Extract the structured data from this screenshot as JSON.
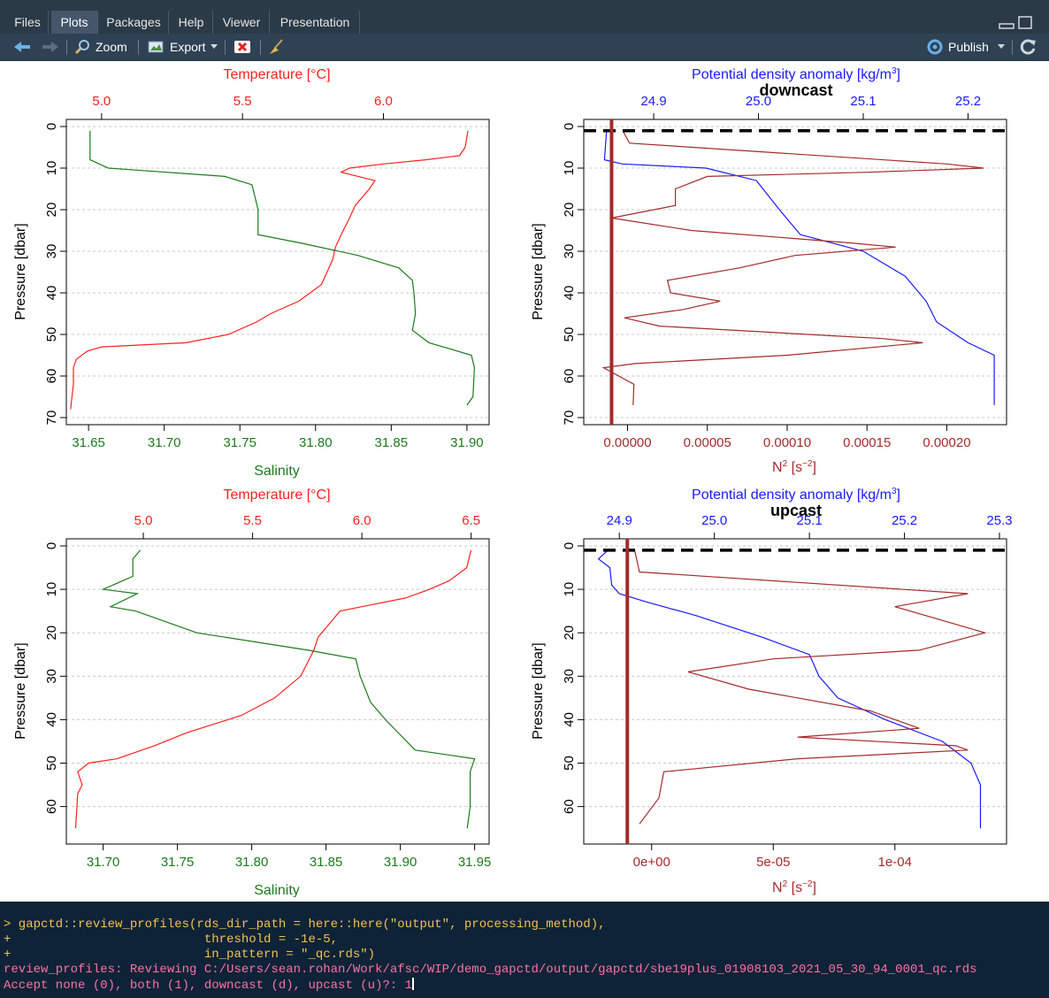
{
  "tabs": [
    {
      "label": "Files",
      "active": false
    },
    {
      "label": "Plots",
      "active": true
    },
    {
      "label": "Packages",
      "active": false
    },
    {
      "label": "Help",
      "active": false
    },
    {
      "label": "Viewer",
      "active": false
    },
    {
      "label": "Presentation",
      "active": false
    }
  ],
  "toolbar": {
    "back_icon": "arrow-left-icon",
    "forward_icon": "arrow-right-icon",
    "zoom_label": "Zoom",
    "export_label": "Export",
    "remove_icon": "remove-plot-icon",
    "clear_icon": "broom-icon",
    "publish_label": "Publish",
    "refresh_icon": "refresh-icon"
  },
  "colors": {
    "temperature": "#ff2020",
    "salinity": "#1c7a1c",
    "density": "#1a1aff",
    "n2": "#a52a2a",
    "dashed": "#000000"
  },
  "plots": {
    "top_left": {
      "top_axis_label": "Temperature [°C]",
      "top_ticks": [
        "5.0",
        "5.5",
        "6.0"
      ],
      "bottom_axis_label": "Salinity",
      "bottom_ticks": [
        "31.65",
        "31.70",
        "31.75",
        "31.80",
        "31.85",
        "31.90"
      ],
      "y_label": "Pressure [dbar]",
      "y_ticks": [
        "0",
        "10",
        "20",
        "30",
        "40",
        "50",
        "60",
        "70"
      ]
    },
    "top_right": {
      "title": "downcast",
      "top_axis_label": "Potential density anomaly [kg/m",
      "top_ticks": [
        "24.9",
        "25.0",
        "25.1",
        "25.2"
      ],
      "bottom_ticks": [
        "0.00000",
        "0.00005",
        "0.00010",
        "0.00015",
        "0.00020"
      ],
      "y_label": "Pressure [dbar]",
      "y_ticks": [
        "0",
        "10",
        "20",
        "30",
        "40",
        "50",
        "60",
        "70"
      ]
    },
    "bottom_left": {
      "top_axis_label": "Temperature [°C]",
      "top_ticks": [
        "5.0",
        "5.5",
        "6.0",
        "6.5"
      ],
      "bottom_axis_label": "Salinity",
      "bottom_ticks": [
        "31.70",
        "31.75",
        "31.80",
        "31.85",
        "31.90",
        "31.95"
      ],
      "y_label": "Pressure [dbar]",
      "y_ticks": [
        "0",
        "10",
        "20",
        "30",
        "40",
        "50",
        "60"
      ]
    },
    "bottom_right": {
      "title": "upcast",
      "top_axis_label": "Potential density anomaly [kg/m",
      "top_ticks": [
        "24.9",
        "25.0",
        "25.1",
        "25.2",
        "25.3"
      ],
      "bottom_ticks": [
        "0e+00",
        "5e-05",
        "1e-04"
      ],
      "y_label": "Pressure [dbar]",
      "y_ticks": [
        "0",
        "10",
        "20",
        "30",
        "40",
        "50",
        "60"
      ]
    }
  },
  "n2_label": "N",
  "n2_units": "[s",
  "console": {
    "lines": [
      "> gapctd::review_profiles(rds_dir_path = here::here(\"output\", processing_method),",
      "+                          threshold = -1e-5,",
      "+                          in_pattern = \"_qc.rds\")",
      "review_profiles: Reviewing C:/Users/sean.rohan/Work/afsc/WIP/demo_gapctd/output/gapctd/sbe19plus_01908103_2021_05_30_94_0001_qc.rds",
      "Accept none (0), both (1), downcast (d), upcast (u)?: 1"
    ]
  },
  "chart_data": [
    {
      "type": "line",
      "title": "",
      "y_axis": {
        "label": "Pressure [dbar]",
        "range": [
          70,
          0
        ],
        "reversed": true
      },
      "series": [
        {
          "name": "Temperature [°C]",
          "axis": "top",
          "range": [
            4.9,
            6.35
          ],
          "points": [
            [
              6.3,
              1
            ],
            [
              6.29,
              5
            ],
            [
              6.27,
              7
            ],
            [
              6.15,
              8
            ],
            [
              6.0,
              9
            ],
            [
              5.88,
              10
            ],
            [
              5.85,
              11
            ],
            [
              5.97,
              13
            ],
            [
              5.95,
              15
            ],
            [
              5.9,
              19
            ],
            [
              5.88,
              22
            ],
            [
              5.85,
              26
            ],
            [
              5.83,
              29
            ],
            [
              5.82,
              32
            ],
            [
              5.8,
              35
            ],
            [
              5.78,
              38
            ],
            [
              5.7,
              42
            ],
            [
              5.6,
              45
            ],
            [
              5.55,
              47
            ],
            [
              5.45,
              50
            ],
            [
              5.3,
              52
            ],
            [
              5.0,
              53
            ],
            [
              4.95,
              54
            ],
            [
              4.91,
              56
            ],
            [
              4.9,
              58
            ],
            [
              4.9,
              62
            ],
            [
              4.89,
              68
            ]
          ]
        },
        {
          "name": "Salinity",
          "axis": "bottom",
          "range": [
            31.64,
            31.91
          ],
          "points": [
            [
              31.651,
              1
            ],
            [
              31.651,
              8
            ],
            [
              31.663,
              10
            ],
            [
              31.74,
              12
            ],
            [
              31.758,
              14
            ],
            [
              31.762,
              20
            ],
            [
              31.762,
              26
            ],
            [
              31.79,
              28
            ],
            [
              31.828,
              31
            ],
            [
              31.855,
              34
            ],
            [
              31.864,
              37
            ],
            [
              31.865,
              40
            ],
            [
              31.866,
              45
            ],
            [
              31.864,
              49
            ],
            [
              31.875,
              52
            ],
            [
              31.903,
              55
            ],
            [
              31.905,
              58
            ],
            [
              31.904,
              65
            ],
            [
              31.9,
              67
            ]
          ]
        }
      ]
    },
    {
      "type": "line",
      "title": "downcast",
      "y_axis": {
        "label": "Pressure [dbar]",
        "range": [
          70,
          0
        ],
        "reversed": true
      },
      "series": [
        {
          "name": "Potential density anomaly",
          "axis": "top",
          "range": [
            24.84,
            25.23
          ],
          "points": [
            [
              24.855,
              1
            ],
            [
              24.853,
              8
            ],
            [
              24.87,
              9
            ],
            [
              24.95,
              10
            ],
            [
              24.998,
              13
            ],
            [
              25.02,
              20
            ],
            [
              25.04,
              26
            ],
            [
              25.07,
              28
            ],
            [
              25.1,
              30
            ],
            [
              25.12,
              33
            ],
            [
              25.14,
              36
            ],
            [
              25.16,
              42
            ],
            [
              25.17,
              47
            ],
            [
              25.2,
              52
            ],
            [
              25.225,
              55
            ],
            [
              25.225,
              65
            ],
            [
              25.225,
              67
            ]
          ]
        },
        {
          "name": "N2",
          "axis": "bottom",
          "range": [
            -2.3e-05,
            0.000233
          ],
          "points": [
            [
              -3e-06,
              1
            ],
            [
              1.2e-06,
              4
            ],
            [
              0.0002,
              9
            ],
            [
              0.000223,
              10
            ],
            [
              0.00015,
              11
            ],
            [
              5e-05,
              12
            ],
            [
              3e-05,
              15
            ],
            [
              3e-05,
              19
            ],
            [
              -1e-05,
              22
            ],
            [
              4e-05,
              25
            ],
            [
              0.00014,
              28
            ],
            [
              0.000168,
              29
            ],
            [
              0.000105,
              31
            ],
            [
              7e-05,
              34
            ],
            [
              2.5e-05,
              37
            ],
            [
              2.7e-05,
              40
            ],
            [
              5.8e-05,
              42
            ],
            [
              3.5e-05,
              44
            ],
            [
              -2e-06,
              46
            ],
            [
              2e-05,
              48
            ],
            [
              0.00016,
              51
            ],
            [
              0.000185,
              52
            ],
            [
              0.0001,
              55
            ],
            [
              5e-06,
              57
            ],
            [
              -1.5e-05,
              58
            ],
            [
              4e-06,
              62
            ],
            [
              3.5e-06,
              67
            ]
          ]
        }
      ],
      "hlines": [
        {
          "y": 1,
          "style": "dashed"
        }
      ],
      "vlines": [
        {
          "x": -1e-05,
          "axis": "bottom"
        }
      ]
    },
    {
      "type": "line",
      "title": "",
      "y_axis": {
        "label": "Pressure [dbar]",
        "range": [
          67,
          0
        ],
        "reversed": true
      },
      "series": [
        {
          "name": "Temperature [°C]",
          "axis": "top",
          "range": [
            4.68,
            6.55
          ],
          "points": [
            [
              6.5,
              1
            ],
            [
              6.48,
              5
            ],
            [
              6.4,
              8
            ],
            [
              6.31,
              10
            ],
            [
              6.2,
              12
            ],
            [
              6.0,
              14
            ],
            [
              5.9,
              15
            ],
            [
              5.85,
              18
            ],
            [
              5.8,
              21
            ],
            [
              5.78,
              24
            ],
            [
              5.75,
              27
            ],
            [
              5.72,
              30
            ],
            [
              5.6,
              35
            ],
            [
              5.45,
              39
            ],
            [
              5.2,
              43
            ],
            [
              5.05,
              46
            ],
            [
              4.88,
              49
            ],
            [
              4.75,
              50
            ],
            [
              4.7,
              52
            ],
            [
              4.72,
              55
            ],
            [
              4.7,
              57
            ],
            [
              4.69,
              65
            ]
          ]
        },
        {
          "name": "Salinity",
          "axis": "bottom",
          "range": [
            31.68,
            31.955
          ],
          "points": [
            [
              31.725,
              1
            ],
            [
              31.72,
              3
            ],
            [
              31.72,
              7
            ],
            [
              31.7,
              10
            ],
            [
              31.723,
              11
            ],
            [
              31.705,
              14
            ],
            [
              31.722,
              15
            ],
            [
              31.763,
              20
            ],
            [
              31.838,
              24
            ],
            [
              31.87,
              26
            ],
            [
              31.873,
              30
            ],
            [
              31.88,
              36
            ],
            [
              31.89,
              40
            ],
            [
              31.91,
              47
            ],
            [
              31.95,
              49
            ],
            [
              31.947,
              52
            ],
            [
              31.947,
              60
            ],
            [
              31.945,
              65
            ]
          ]
        }
      ]
    },
    {
      "type": "line",
      "title": "upcast",
      "y_axis": {
        "label": "Pressure [dbar]",
        "range": [
          67,
          0
        ],
        "reversed": true
      },
      "series": [
        {
          "name": "Potential density anomaly",
          "axis": "top",
          "range": [
            24.87,
            25.3
          ],
          "points": [
            [
              24.888,
              1
            ],
            [
              24.878,
              3
            ],
            [
              24.89,
              5
            ],
            [
              24.892,
              9
            ],
            [
              24.9,
              11
            ],
            [
              24.93,
              13
            ],
            [
              24.98,
              16
            ],
            [
              25.05,
              21
            ],
            [
              25.1,
              25
            ],
            [
              25.11,
              30
            ],
            [
              25.13,
              35
            ],
            [
              25.18,
              40
            ],
            [
              25.24,
              45
            ],
            [
              25.27,
              50
            ],
            [
              25.28,
              55
            ],
            [
              25.28,
              62
            ],
            [
              25.28,
              65
            ]
          ]
        },
        {
          "name": "N2",
          "axis": "bottom",
          "range": [
            -2.5e-05,
            0.000143
          ],
          "points": [
            [
              -7e-06,
              1
            ],
            [
              -5e-06,
              6
            ],
            [
              0.00013,
              11
            ],
            [
              0.0001,
              14
            ],
            [
              0.000137,
              20
            ],
            [
              0.00011,
              24
            ],
            [
              5e-05,
              26
            ],
            [
              1.5e-05,
              29
            ],
            [
              4e-05,
              33
            ],
            [
              9e-05,
              38
            ],
            [
              0.00011,
              42
            ],
            [
              6e-05,
              44
            ],
            [
              0.000125,
              46
            ],
            [
              0.00013,
              47
            ],
            [
              6e-05,
              49
            ],
            [
              5e-06,
              52
            ],
            [
              3e-06,
              58
            ],
            [
              -5e-06,
              64
            ]
          ]
        }
      ],
      "hlines": [
        {
          "y": 1,
          "style": "dashed"
        }
      ],
      "vlines": [
        {
          "x": -1e-05,
          "axis": "bottom"
        }
      ]
    }
  ]
}
